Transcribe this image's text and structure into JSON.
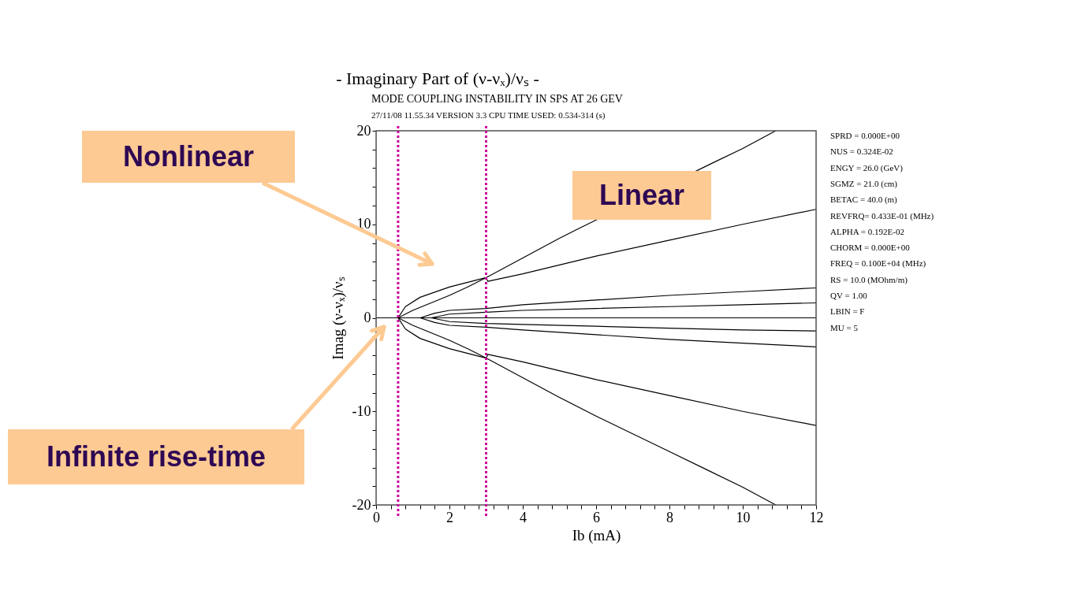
{
  "chart_data": {
    "type": "line",
    "title": "- Imaginary Part of (ν-νₓ)/νₛ -",
    "subtitle": "MODE COUPLING INSTABILITY IN SPS AT 26 GEV",
    "xlabel": "Ib (mA)",
    "ylabel": "Imag (ν-νₓ)/νₛ",
    "xlim": [
      0,
      12
    ],
    "ylim": [
      -20,
      20
    ],
    "xticks": [
      0,
      {
        "value": 0.4,
        "label": null
      },
      {
        "value": 0.8,
        "label": null
      },
      {
        "value": 1.2,
        "label": null
      },
      {
        "value": 1.6,
        "label": null
      },
      2,
      {
        "value": 2.4,
        "label": null
      },
      {
        "value": 2.8,
        "label": null
      },
      {
        "value": 3.2,
        "label": null
      },
      {
        "value": 3.6,
        "label": null
      },
      4,
      {
        "value": 4.4,
        "label": null
      },
      {
        "value": 4.8,
        "label": null
      },
      {
        "value": 5.2,
        "label": null
      },
      {
        "value": 5.6,
        "label": null
      },
      6,
      {
        "value": 6.4,
        "label": null
      },
      {
        "value": 6.8,
        "label": null
      },
      {
        "value": 7.2,
        "label": null
      },
      {
        "value": 7.6,
        "label": null
      },
      8,
      {
        "value": 8.4,
        "label": null
      },
      {
        "value": 8.8,
        "label": null
      },
      {
        "value": 9.2,
        "label": null
      },
      {
        "value": 9.6,
        "label": null
      },
      10,
      {
        "value": 10.4,
        "label": null
      },
      {
        "value": 10.8,
        "label": null
      },
      {
        "value": 11.2,
        "label": null
      },
      {
        "value": 11.6,
        "label": null
      },
      12
    ],
    "yticks": [
      -20,
      {
        "value": -18,
        "label": null
      },
      {
        "value": -16,
        "label": null
      },
      {
        "value": -14,
        "label": null
      },
      {
        "value": -12,
        "label": null
      },
      -10,
      {
        "value": -8,
        "label": null
      },
      {
        "value": -6,
        "label": null
      },
      {
        "value": -4,
        "label": null
      },
      {
        "value": -2,
        "label": null
      },
      0,
      {
        "value": 2,
        "label": null
      },
      {
        "value": 4,
        "label": null
      },
      {
        "value": 6,
        "label": null
      },
      {
        "value": 8,
        "label": null
      },
      10,
      {
        "value": 12,
        "label": null
      },
      {
        "value": 14,
        "label": null
      },
      {
        "value": 16,
        "label": null
      },
      {
        "value": 18,
        "label": null
      },
      20
    ],
    "grid": false,
    "legend": false,
    "marker": "none",
    "line_style": "solid",
    "series": [
      {
        "color": "#000000",
        "x": [
          0.6,
          1.0,
          1.5,
          2.0,
          2.5,
          3.0,
          4,
          5,
          5.5,
          7,
          9.2,
          10,
          10.9
        ],
        "values": [
          0,
          0.8,
          1.6,
          2.4,
          3.3,
          4.3,
          6.4,
          8.5,
          9.5,
          null,
          16.6,
          18.1,
          20
        ]
      },
      {
        "color": "#000000",
        "x": [
          0.6,
          0.8,
          1.2,
          2,
          3,
          3.05,
          4,
          6,
          8,
          10,
          12
        ],
        "values": [
          0,
          1.2,
          2.2,
          3.3,
          4.3,
          3.9,
          4.7,
          6.6,
          8.3,
          10,
          11.6
        ]
      },
      {
        "color": "#000000",
        "x": [
          0.6,
          1.0,
          1.5,
          2.0,
          2.5,
          3.0,
          4,
          5,
          6,
          7,
          8,
          9,
          10,
          10.9
        ],
        "values": [
          0,
          -0.8,
          -1.6,
          -2.4,
          -3.3,
          -4.3,
          -6.4,
          -8.5,
          -10.5,
          -12.4,
          -14.3,
          -16.2,
          -18.1,
          -20
        ]
      },
      {
        "color": "#000000",
        "x": [
          0.6,
          0.8,
          1.2,
          2,
          3,
          3.05,
          4,
          6,
          8,
          10,
          12
        ],
        "values": [
          0,
          -1.2,
          -2.2,
          -3.3,
          -4.3,
          -3.9,
          -4.7,
          -6.6,
          -8.3,
          -10,
          -11.5
        ]
      },
      {
        "color": "#000000",
        "x": [
          1.2,
          1.6,
          2,
          3,
          4,
          6,
          8,
          10,
          12
        ],
        "values": [
          0,
          0.5,
          0.8,
          1.0,
          1.4,
          1.9,
          2.4,
          2.8,
          3.2
        ]
      },
      {
        "color": "#000000",
        "x": [
          1.2,
          1.6,
          2,
          3,
          4,
          6,
          8,
          10,
          12
        ],
        "values": [
          0,
          -0.5,
          -0.8,
          -1.0,
          -1.3,
          -1.8,
          -2.3,
          -2.7,
          -3.1
        ]
      },
      {
        "color": "#000000",
        "x": [
          1.5,
          2,
          3,
          4,
          6,
          8,
          10,
          12
        ],
        "values": [
          0,
          0.4,
          0.6,
          0.8,
          1.0,
          1.2,
          1.4,
          1.6
        ]
      },
      {
        "color": "#000000",
        "x": [
          1.5,
          2,
          3,
          4,
          6,
          8,
          10,
          12
        ],
        "values": [
          0,
          -0.4,
          -0.6,
          -0.7,
          -0.9,
          -1.1,
          -1.3,
          -1.4
        ]
      },
      {
        "color": "#000000",
        "x": [
          0,
          12
        ],
        "values": [
          0,
          0
        ]
      }
    ],
    "ref_lines": [
      {
        "axis": "x",
        "value": 0.6,
        "color": "#cc0099",
        "line_style": "dotted"
      },
      {
        "axis": "x",
        "value": 3.0,
        "color": "#cc0099",
        "line_style": "dotted"
      }
    ],
    "annotations": [
      "27/11/08     11.55.34     VERSION 3.3     CPU TIME USED: 0.534-314 (s)",
      "Linear",
      "Nonlinear",
      "Infinite rise-time",
      "SPRD  = 0.000E+00",
      "NUS  = 0.324E-02",
      "ENGY =  26.0    (GeV)",
      "SGMZ =  21.0    (cm)",
      "BETAC =  40.0     (m)",
      "REVFRQ= 0.433E-01 (MHz)",
      "ALPHA = 0.192E-02",
      "CHORM = 0.000E+00",
      "FREQ  = 0.100E+04 (MHz)",
      "RS   =  10.0    (MOhm/m)",
      "QV   = 1.00",
      "LBIN  = F",
      "MU   = 5"
    ]
  }
}
